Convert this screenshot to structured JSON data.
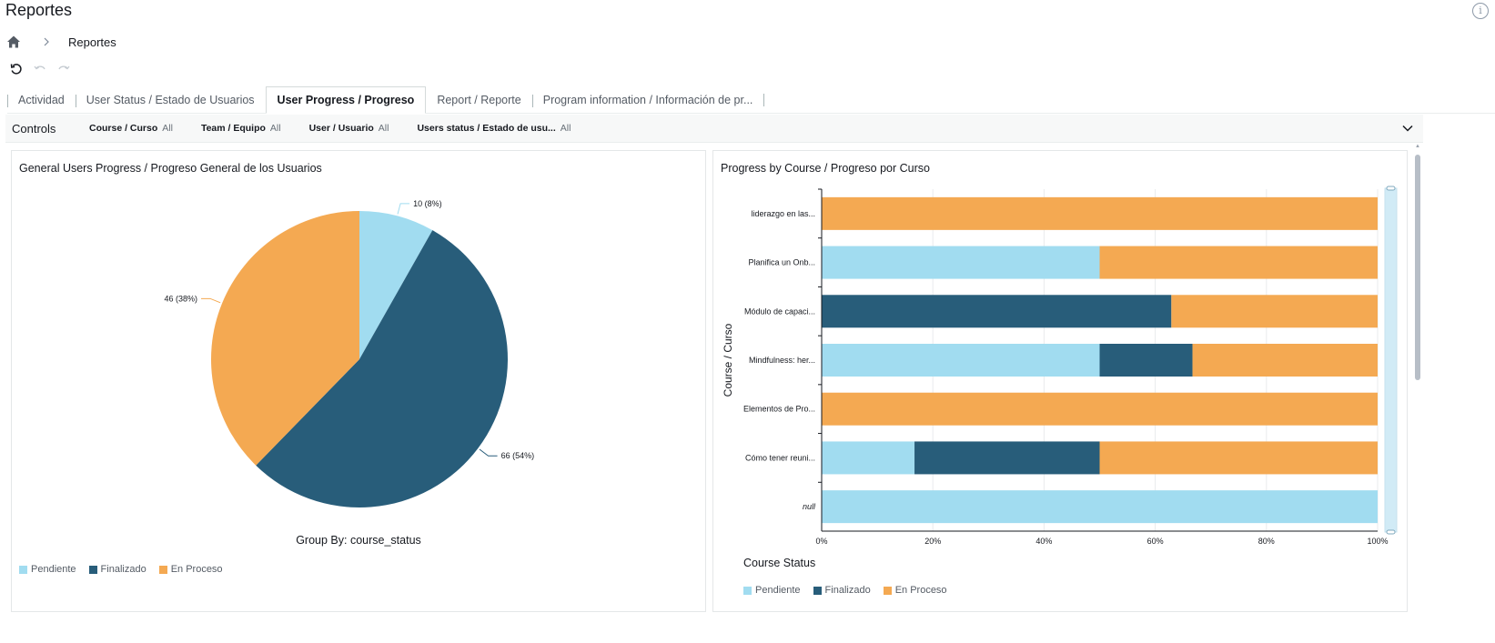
{
  "header": {
    "title": "Reportes"
  },
  "breadcrumb": {
    "home_icon": "home-icon",
    "current": "Reportes"
  },
  "toolbar": {
    "icons": [
      "reset-icon",
      "undo-icon",
      "redo-icon"
    ]
  },
  "tabs": [
    {
      "label": "Actividad",
      "active": false
    },
    {
      "label": "User Status / Estado de Usuarios",
      "active": false
    },
    {
      "label": "User Progress / Progreso",
      "active": true
    },
    {
      "label": "Report / Reporte",
      "active": false
    },
    {
      "label": "Program information / Información de pr...",
      "active": false
    }
  ],
  "controls": {
    "label": "Controls",
    "filters": [
      {
        "name": "Course / Curso",
        "value": "All"
      },
      {
        "name": "Team / Equipo",
        "value": "All"
      },
      {
        "name": "User / Usuario",
        "value": "All"
      },
      {
        "name": "Users status / Estado de usu...",
        "value": "All"
      }
    ]
  },
  "colors": {
    "pendiente": "#a1dcf0",
    "finalizado": "#285d7a",
    "en_proceso": "#f4a952"
  },
  "pie_panel": {
    "title": "General Users Progress / Progreso General de los Usuarios",
    "group_by": "Group By: course_status",
    "legend": [
      "Pendiente",
      "Finalizado",
      "En Proceso"
    ]
  },
  "bar_panel": {
    "title": "Progress by Course / Progreso por Curso",
    "legend_title": "Course Status",
    "legend": [
      "Pendiente",
      "Finalizado",
      "En Proceso"
    ]
  },
  "chart_data": [
    {
      "type": "pie",
      "title": "General Users Progress / Progreso General de los Usuarios",
      "categories": [
        "Pendiente",
        "Finalizado",
        "En Proceso"
      ],
      "values": [
        10,
        66,
        46
      ],
      "labels": [
        "10 (8%)",
        "66 (54%)",
        "46 (38%)"
      ],
      "legend_placement": "bottom-left"
    },
    {
      "type": "bar",
      "orientation": "horizontal",
      "stacked": "percent",
      "title": "Progress by Course / Progreso por Curso",
      "ylabel": "Course / Curso",
      "legend_title": "Course Status",
      "categories": [
        "liderazgo en las...",
        "Planifica un Onb...",
        "Módulo de capaci...",
        "Mindfulness: her...",
        "Elementos de Pro...",
        "Cómo tener reuni...",
        "null"
      ],
      "series": [
        {
          "name": "Pendiente",
          "values": [
            0,
            50,
            0,
            50,
            0,
            16.7,
            100
          ]
        },
        {
          "name": "Finalizado",
          "values": [
            0,
            0,
            62.9,
            16.7,
            0,
            33.3,
            0
          ]
        },
        {
          "name": "En Proceso",
          "values": [
            100,
            50,
            37.1,
            33.3,
            100,
            50,
            0
          ]
        }
      ],
      "xticks": [
        "0%",
        "20%",
        "40%",
        "60%",
        "80%",
        "100%"
      ],
      "xlim": [
        0,
        100
      ],
      "grid": true,
      "legend_placement": "bottom-left"
    }
  ]
}
